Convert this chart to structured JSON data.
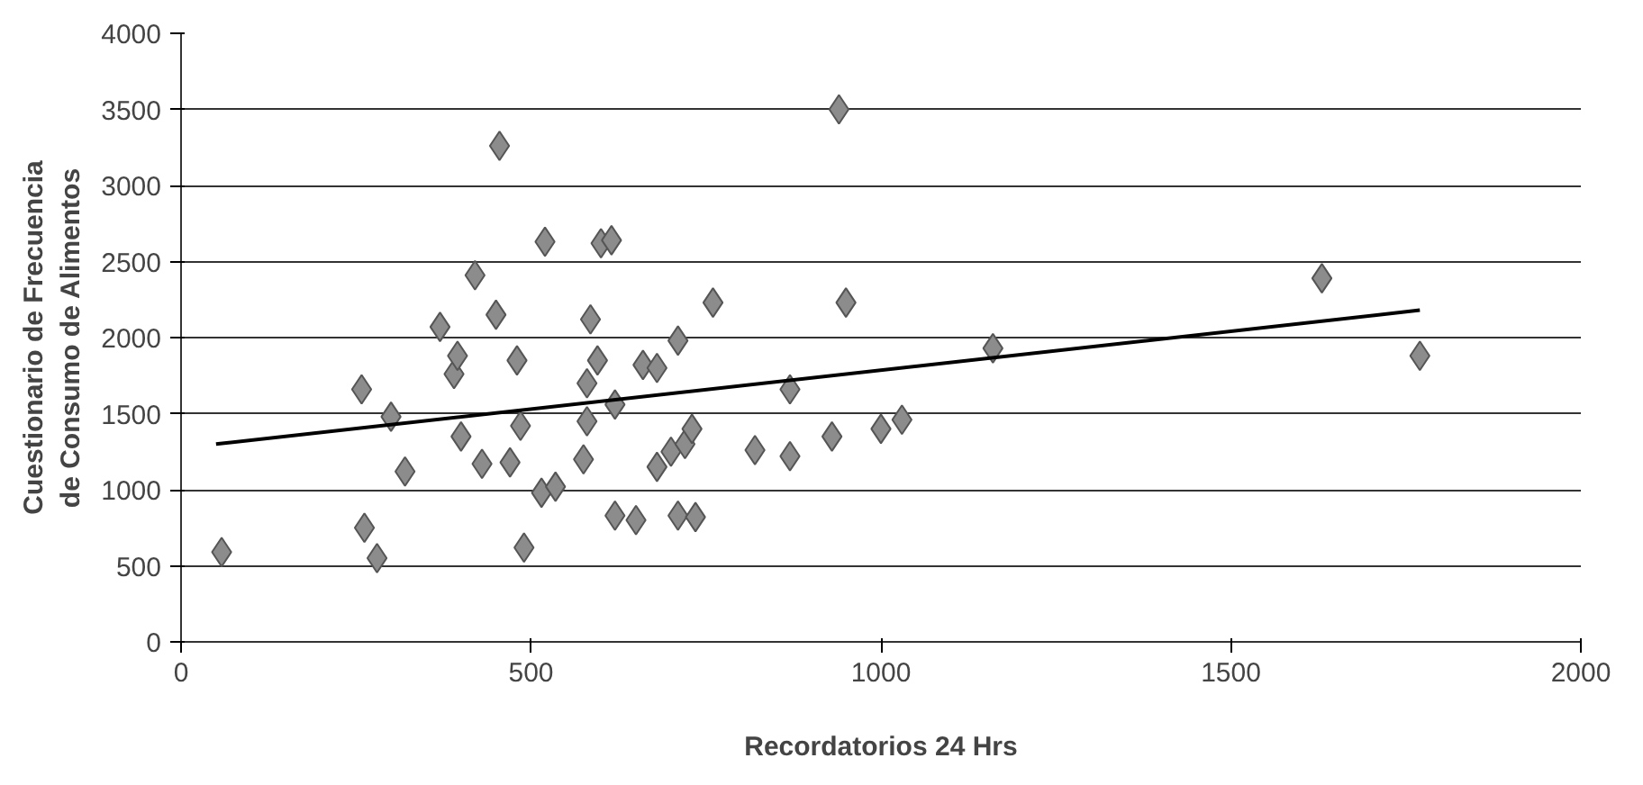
{
  "chart_data": {
    "type": "scatter",
    "xlabel": "Recordatorios 24 Hrs",
    "ylabel": "Cuestionario de Frecuencia de Consumo de Alimentos",
    "xlim": [
      0,
      2000
    ],
    "ylim": [
      0,
      4000
    ],
    "xticks": [
      0,
      500,
      1000,
      1500,
      2000
    ],
    "yticks": [
      0,
      500,
      1000,
      1500,
      2000,
      2500,
      3000,
      3500,
      4000
    ],
    "grid": "y",
    "series": [
      {
        "marker": "diamond",
        "color": "#8c8c8c",
        "x": [
          58,
          258,
          262,
          280,
          300,
          320,
          370,
          385,
          390,
          395,
          400,
          420,
          430,
          450,
          455,
          470,
          480,
          485,
          490,
          520,
          515,
          535,
          575,
          580,
          580,
          585,
          595,
          600,
          615,
          620,
          620,
          650,
          660,
          680,
          680,
          700,
          710,
          710,
          720,
          730,
          735,
          760,
          820,
          870,
          870,
          930,
          940,
          950,
          1000,
          1030,
          1160,
          1630,
          1770
        ],
        "values": [
          590,
          1660,
          750,
          550,
          1480,
          1120,
          2070,
          null,
          1760,
          1880,
          1350,
          2410,
          1170,
          2150,
          3260,
          1180,
          1850,
          1420,
          620,
          2630,
          980,
          1020,
          1200,
          1450,
          1700,
          2120,
          1850,
          2620,
          2640,
          1560,
          830,
          800,
          1820,
          1800,
          1150,
          1250,
          1980,
          830,
          1300,
          1400,
          820,
          2230,
          1260,
          1660,
          1220,
          1350,
          3500,
          2230,
          1400,
          1460,
          1930,
          2390,
          1880
        ]
      },
      {
        "type": "line",
        "color": "#000000",
        "x": [
          50,
          1770
        ],
        "values": [
          1300,
          2180
        ]
      }
    ]
  }
}
